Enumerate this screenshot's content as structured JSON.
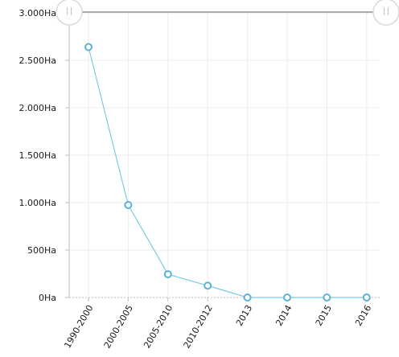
{
  "chart_data": {
    "type": "line",
    "categories": [
      "1990-2000",
      "2000-2005",
      "2005-2010",
      "2010-2012",
      "2013",
      "2014",
      "2015",
      "2016"
    ],
    "values": [
      2640,
      975,
      245,
      125,
      0,
      0,
      0,
      0
    ],
    "y_ticks": [
      "0Ha",
      "500Ha",
      "1.000Ha",
      "1.500Ha",
      "2.000Ha",
      "2.500Ha",
      "3.000Ha"
    ],
    "y_tick_values": [
      0,
      500,
      1000,
      1500,
      2000,
      2500,
      3000
    ],
    "ylim": [
      0,
      3000
    ],
    "grid": true,
    "legend": "none",
    "colors": {
      "line": "#7ccbe4",
      "marker_stroke": "#5ab3d3",
      "grid": "#ececec",
      "axis": "#bdbdbd",
      "scrollbar": "#aaaaaa"
    }
  },
  "scrollbar": {
    "range_start": 0,
    "range_end": 1
  }
}
